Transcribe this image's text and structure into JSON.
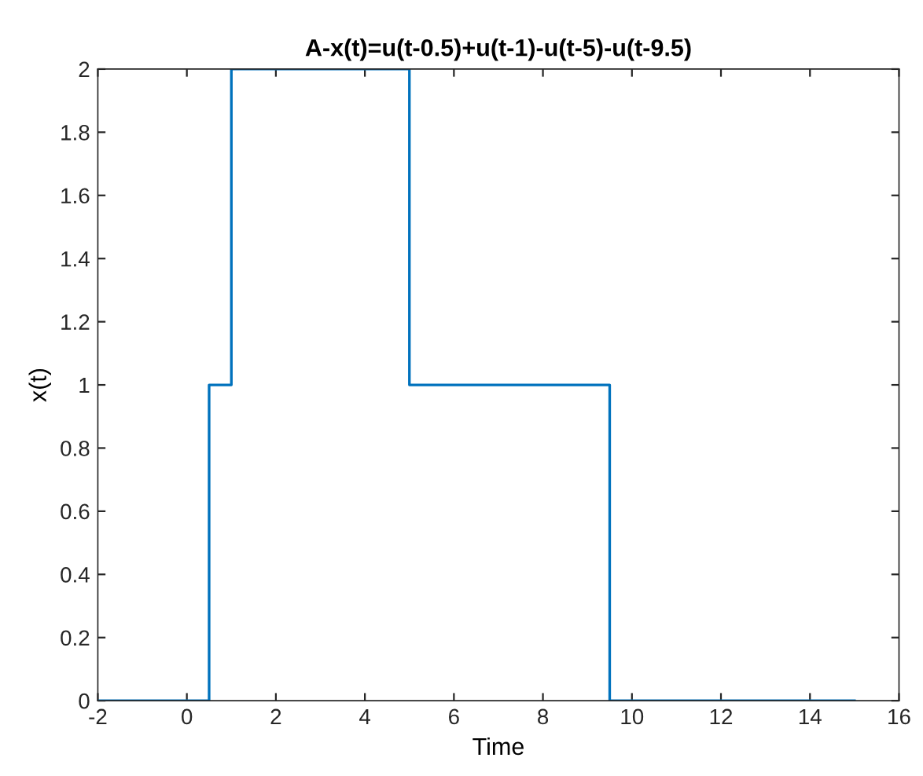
{
  "chart_data": {
    "type": "step",
    "title": "A-x(t)=u(t-0.5)+u(t-1)-u(t-5)-u(t-9.5)",
    "xlabel": "Time",
    "ylabel": "x(t)",
    "series": [
      {
        "color": "#0072bd",
        "x": [
          -2,
          0.5,
          1,
          5,
          9.5,
          15
        ],
        "values": [
          0,
          1,
          2,
          1,
          0,
          0
        ]
      }
    ],
    "xlim": [
      -2,
      16
    ],
    "xticks": [
      -2,
      0,
      2,
      4,
      6,
      8,
      10,
      12,
      14,
      16
    ],
    "ylim": [
      0,
      2
    ],
    "yticks": [
      0,
      0.2,
      0.4,
      0.6,
      0.8,
      1,
      1.2,
      1.4,
      1.6,
      1.8,
      2
    ],
    "grid": false,
    "line_style": "solid"
  }
}
